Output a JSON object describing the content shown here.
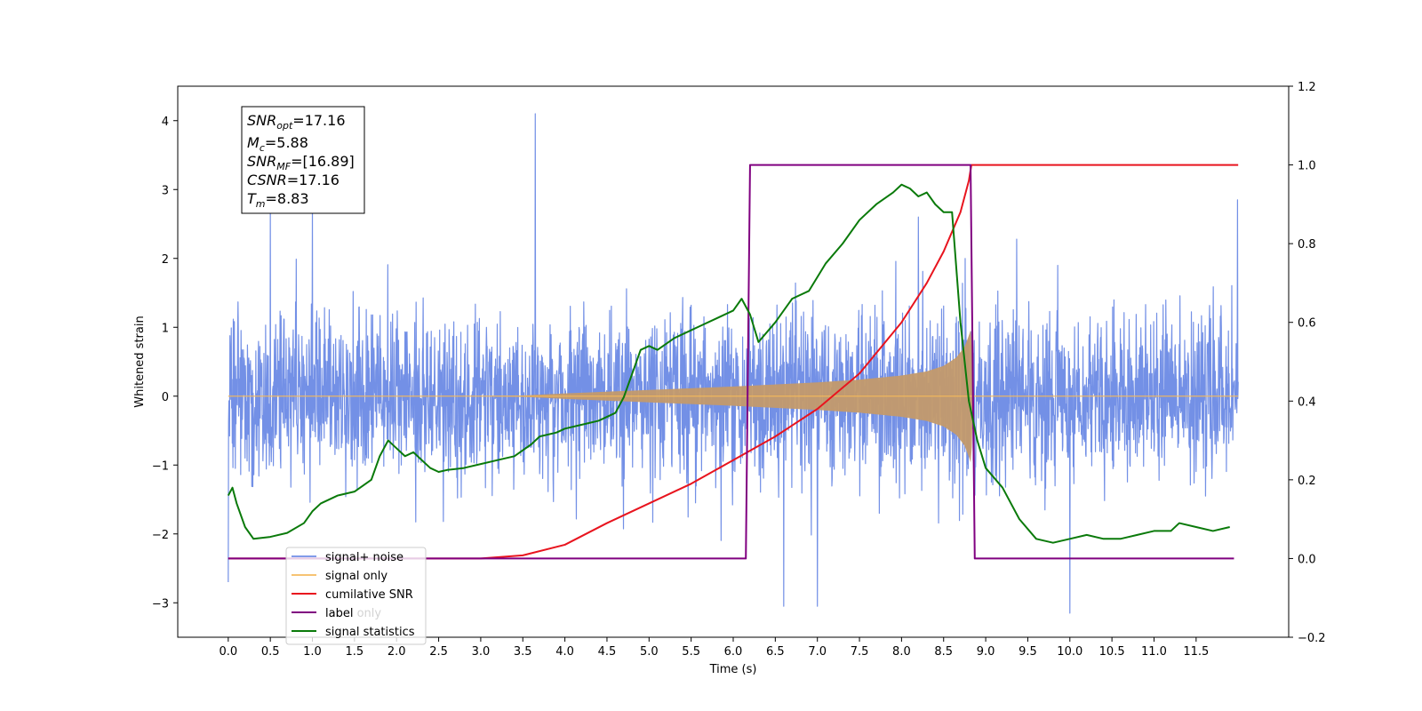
{
  "chart_data": {
    "type": "line",
    "xlabel": "Time (s)",
    "ylabel_left": "Whitened strain",
    "ylabel_right": "",
    "xlim": [
      -0.6,
      12.6
    ],
    "ylim_left": [
      -3.5,
      4.5
    ],
    "ylim_right": [
      -0.2,
      1.2
    ],
    "x_ticks": [
      "0.0",
      "0.5",
      "1.0",
      "1.5",
      "2.0",
      "2.5",
      "3.0",
      "3.5",
      "4.0",
      "4.5",
      "5.0",
      "5.5",
      "6.0",
      "6.5",
      "7.0",
      "7.5",
      "8.0",
      "8.5",
      "9.0",
      "9.5",
      "10.0",
      "10.5",
      "11.0",
      "11.5"
    ],
    "y_ticks_left": [
      "4",
      "3",
      "2",
      "1",
      "0",
      "−1",
      "−2",
      "−3"
    ],
    "y_ticks_right": [
      "1.2",
      "1.0",
      "0.8",
      "0.6",
      "0.4",
      "0.2",
      "0.0",
      "−0.2"
    ],
    "grid": false,
    "annotation_box": [
      {
        "base": "SNR",
        "sub": "opt",
        "value": "=17.16"
      },
      {
        "base": "M",
        "sub": "c",
        "value": "=5.88"
      },
      {
        "base": "SNR",
        "sub": "MF",
        "value": "=[16.89]"
      },
      {
        "base": "CSNR",
        "sub": "",
        "value": "=17.16"
      },
      {
        "base": "T",
        "sub": "m",
        "value": "=8.83"
      }
    ],
    "legend": {
      "position": "lower-left",
      "entries": [
        {
          "label": "signal+ noise",
          "color": "#6b8ae5"
        },
        {
          "label": "signal only",
          "color": "#f5b95a"
        },
        {
          "label": "cumilative SNR",
          "color": "#e8141e"
        },
        {
          "label": "label",
          "color": "#800080"
        },
        {
          "label": "signal statistics",
          "color": "#0a7a0a"
        }
      ],
      "hidden_text": "label only"
    },
    "series": [
      {
        "name": "signal+ noise",
        "axis": "left",
        "color": "#6b8ae5",
        "x_range": [
          0.0,
          12.0
        ],
        "typical_envelope": [
          -1.6,
          1.6
        ],
        "peaks": [
          [
            0.5,
            2.7
          ],
          [
            1.0,
            2.7
          ],
          [
            3.65,
            4.1
          ],
          [
            8.2,
            2.6
          ],
          [
            11.99,
            2.85
          ],
          [
            10.0,
            -3.15
          ],
          [
            6.6,
            -3.05
          ],
          [
            7.0,
            -3.05
          ],
          [
            0.0,
            -2.7
          ]
        ]
      },
      {
        "name": "signal only",
        "axis": "left",
        "color": "#f5b95a",
        "x_range": [
          0.0,
          12.0
        ],
        "envelope": {
          "x": [
            0.0,
            3.0,
            3.5,
            4.0,
            5.0,
            6.0,
            7.0,
            7.5,
            8.0,
            8.3,
            8.5,
            8.65,
            8.75,
            8.8,
            8.83,
            8.85
          ],
          "amp": [
            0.0,
            0.0,
            0.01,
            0.04,
            0.09,
            0.14,
            0.2,
            0.24,
            0.3,
            0.36,
            0.44,
            0.56,
            0.72,
            0.88,
            1.0,
            0.0
          ]
        }
      },
      {
        "name": "cumilative SNR",
        "axis": "right",
        "color": "#e8141e",
        "x": [
          0.0,
          3.0,
          3.5,
          4.0,
          4.5,
          5.0,
          5.5,
          6.0,
          6.5,
          7.0,
          7.5,
          8.0,
          8.3,
          8.5,
          8.7,
          8.8,
          8.83,
          9.0,
          12.0
        ],
        "values": [
          0.0,
          0.0,
          0.008,
          0.035,
          0.09,
          0.14,
          0.19,
          0.25,
          0.31,
          0.38,
          0.47,
          0.6,
          0.7,
          0.78,
          0.88,
          0.96,
          1.0,
          1.0,
          1.0
        ]
      },
      {
        "name": "label",
        "axis": "right",
        "color": "#800080",
        "x": [
          0.0,
          6.15,
          6.2,
          8.82,
          8.87,
          11.95
        ],
        "values": [
          0.0,
          0.0,
          1.0,
          1.0,
          0.0,
          0.0
        ]
      },
      {
        "name": "signal statistics",
        "axis": "right",
        "color": "#0a7a0a",
        "x": [
          0.0,
          0.05,
          0.1,
          0.2,
          0.3,
          0.5,
          0.7,
          0.9,
          1.0,
          1.1,
          1.3,
          1.5,
          1.7,
          1.8,
          1.9,
          2.0,
          2.1,
          2.2,
          2.3,
          2.4,
          2.5,
          2.6,
          2.8,
          3.0,
          3.2,
          3.4,
          3.6,
          3.7,
          3.9,
          4.0,
          4.2,
          4.4,
          4.6,
          4.7,
          4.8,
          4.9,
          5.0,
          5.1,
          5.3,
          5.5,
          5.6,
          5.8,
          6.0,
          6.1,
          6.2,
          6.3,
          6.5,
          6.7,
          6.9,
          7.1,
          7.3,
          7.5,
          7.7,
          7.9,
          8.0,
          8.1,
          8.2,
          8.3,
          8.4,
          8.5,
          8.6,
          8.7,
          8.8,
          8.9,
          9.0,
          9.2,
          9.4,
          9.6,
          9.8,
          10.0,
          10.2,
          10.4,
          10.6,
          10.8,
          11.0,
          11.2,
          11.3,
          11.5,
          11.7,
          11.9
        ],
        "values": [
          0.16,
          0.18,
          0.14,
          0.08,
          0.05,
          0.055,
          0.065,
          0.09,
          0.12,
          0.14,
          0.16,
          0.17,
          0.2,
          0.26,
          0.3,
          0.28,
          0.26,
          0.27,
          0.25,
          0.23,
          0.22,
          0.225,
          0.23,
          0.24,
          0.25,
          0.26,
          0.29,
          0.31,
          0.32,
          0.33,
          0.34,
          0.35,
          0.37,
          0.41,
          0.47,
          0.53,
          0.54,
          0.53,
          0.56,
          0.58,
          0.59,
          0.61,
          0.63,
          0.66,
          0.62,
          0.55,
          0.6,
          0.66,
          0.68,
          0.75,
          0.8,
          0.86,
          0.9,
          0.93,
          0.95,
          0.94,
          0.92,
          0.93,
          0.9,
          0.88,
          0.88,
          0.6,
          0.4,
          0.3,
          0.23,
          0.18,
          0.1,
          0.05,
          0.04,
          0.05,
          0.06,
          0.05,
          0.05,
          0.06,
          0.07,
          0.07,
          0.09,
          0.08,
          0.07,
          0.08
        ]
      }
    ]
  }
}
